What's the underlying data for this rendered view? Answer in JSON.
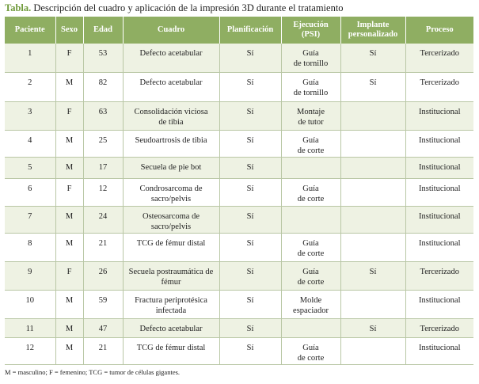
{
  "header": {
    "label": "Tabla.",
    "title": "Descripción del cuadro y aplicación de la impresión 3D durante el tratamiento"
  },
  "table": {
    "columns": [
      "Paciente",
      "Sexo",
      "Edad",
      "Cuadro",
      "Planificación",
      "Ejecución\n(PSI)",
      "Implante\npersonalizado",
      "Proceso"
    ],
    "rows": [
      [
        "1",
        "F",
        "53",
        "Defecto acetabular",
        "Sí",
        "Guía\nde tornillo",
        "Sí",
        "Tercerizado"
      ],
      [
        "2",
        "M",
        "82",
        "Defecto acetabular",
        "Sí",
        "Guía\nde tornillo",
        "Sí",
        "Tercerizado"
      ],
      [
        "3",
        "F",
        "63",
        "Consolidación viciosa\nde tibia",
        "Sí",
        "Montaje\nde tutor",
        null,
        "Institucional"
      ],
      [
        "4",
        "M",
        "25",
        "Seudoartrosis de tibia",
        "Sí",
        "Guía\nde corte",
        null,
        "Institucional"
      ],
      [
        "5",
        "M",
        "17",
        "Secuela de pie bot",
        "Sí",
        null,
        null,
        "Institucional"
      ],
      [
        "6",
        "F",
        "12",
        "Condrosarcoma de\nsacro/pelvis",
        "Sí",
        "Guía\nde corte",
        null,
        "Institucional"
      ],
      [
        "7",
        "M",
        "24",
        "Osteosarcoma de\nsacro/pelvis",
        "Sí",
        null,
        null,
        "Institucional"
      ],
      [
        "8",
        "M",
        "21",
        "TCG de fémur distal",
        "Sí",
        "Guía\nde corte",
        null,
        "Institucional"
      ],
      [
        "9",
        "F",
        "26",
        "Secuela postraumática de\nfémur",
        "Sí",
        "Guía\nde corte",
        "Sí",
        "Tercerizado"
      ],
      [
        "10",
        "M",
        "59",
        "Fractura periprotésica\ninfectada",
        "Sí",
        "Molde\nespaciador",
        null,
        "Institucional"
      ],
      [
        "11",
        "M",
        "47",
        "Defecto acetabular",
        "Sí",
        null,
        "Sí",
        "Tercerizado"
      ],
      [
        "12",
        "M",
        "21",
        "TCG de fémur distal",
        "Sí",
        "Guía\nde corte",
        null,
        "Institucional"
      ]
    ]
  },
  "footnote": "M = masculino; F = femenino; TCG = tumor de células gigantes."
}
